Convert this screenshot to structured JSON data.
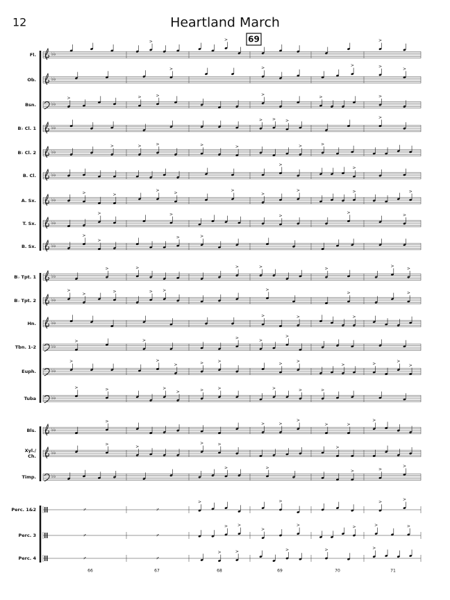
{
  "header": {
    "page_number": "12",
    "title": "Heartland March",
    "rehearsal_mark": "69"
  },
  "staves": [
    {
      "label": "Fl.",
      "clef": "treble"
    },
    {
      "label": "Ob.",
      "clef": "treble"
    },
    {
      "label": "Bsn.",
      "clef": "bass"
    },
    {
      "label": "B♭ Cl. 1",
      "clef": "treble"
    },
    {
      "label": "B♭ Cl. 2",
      "clef": "treble"
    },
    {
      "label": "B. Cl.",
      "clef": "treble"
    },
    {
      "label": "A. Sx.",
      "clef": "treble"
    },
    {
      "label": "T. Sx.",
      "clef": "treble"
    },
    {
      "label": "B. Sx.",
      "clef": "treble"
    },
    {
      "label": "B♭ Tpt. 1",
      "clef": "treble"
    },
    {
      "label": "B♭ Tpt. 2",
      "clef": "treble"
    },
    {
      "label": "Hn.",
      "clef": "treble"
    },
    {
      "label": "Tbn. 1-2",
      "clef": "bass"
    },
    {
      "label": "Euph.",
      "clef": "bass"
    },
    {
      "label": "Tuba",
      "clef": "bass"
    },
    {
      "label": "Bls.",
      "clef": "treble"
    },
    {
      "label_lines": [
        "Xyl./",
        "Ch."
      ],
      "clef": "treble"
    },
    {
      "label": "Timp.",
      "clef": "bass"
    },
    {
      "label": "Perc. 1&2",
      "clef": "percussion"
    },
    {
      "label": "Perc. 3",
      "clef": "percussion"
    },
    {
      "label": "Perc. 4",
      "clef": "percussion"
    }
  ],
  "measure_numbers": [
    "66",
    "67",
    "68",
    "69",
    "70",
    "71"
  ]
}
